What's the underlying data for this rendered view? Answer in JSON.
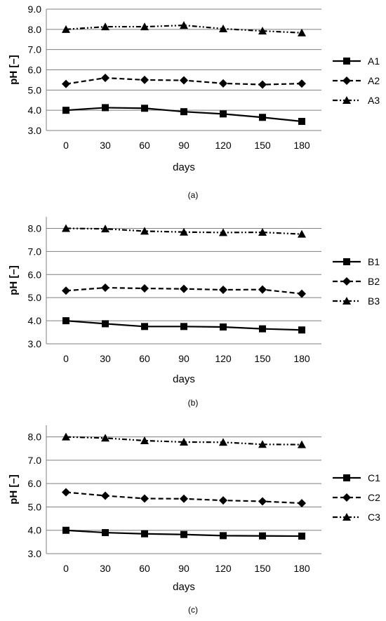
{
  "chart_data": [
    {
      "type": "line",
      "caption": "(a)",
      "xlabel": "days",
      "ylabel": "pH [–]",
      "categories": [
        "0",
        "30",
        "60",
        "90",
        "120",
        "150",
        "180"
      ],
      "ylim": [
        3.0,
        9.0
      ],
      "yticks": [
        "3.0",
        "4.0",
        "5.0",
        "6.0",
        "7.0",
        "8.0",
        "9.0"
      ],
      "grid": true,
      "legend": "right",
      "series": [
        {
          "name": "A1",
          "values": [
            4.0,
            4.13,
            4.1,
            3.93,
            3.82,
            3.65,
            3.45
          ],
          "marker": "square",
          "dash": "solid"
        },
        {
          "name": "A2",
          "values": [
            5.3,
            5.6,
            5.5,
            5.48,
            5.33,
            5.27,
            5.32
          ],
          "marker": "diamond",
          "dash": "dashed"
        },
        {
          "name": "A3",
          "values": [
            8.0,
            8.13,
            8.13,
            8.2,
            8.03,
            7.92,
            7.83
          ],
          "marker": "triangle",
          "dash": "dashdotdot"
        }
      ]
    },
    {
      "type": "line",
      "caption": "(b)",
      "xlabel": "days",
      "ylabel": "pH [–]",
      "categories": [
        "0",
        "30",
        "60",
        "90",
        "120",
        "150",
        "180"
      ],
      "ylim": [
        3.0,
        8.5
      ],
      "yticks": [
        "3.0",
        "4.0",
        "5.0",
        "6.0",
        "7.0",
        "8.0"
      ],
      "grid": true,
      "legend": "right",
      "series": [
        {
          "name": "B1",
          "values": [
            4.0,
            3.87,
            3.75,
            3.75,
            3.73,
            3.65,
            3.6
          ],
          "marker": "square",
          "dash": "solid"
        },
        {
          "name": "B2",
          "values": [
            5.3,
            5.43,
            5.4,
            5.38,
            5.34,
            5.35,
            5.17
          ],
          "marker": "diamond",
          "dash": "dashed"
        },
        {
          "name": "B3",
          "values": [
            8.0,
            7.98,
            7.88,
            7.84,
            7.82,
            7.83,
            7.75
          ],
          "marker": "triangle",
          "dash": "dashdotdot"
        }
      ]
    },
    {
      "type": "line",
      "caption": "(c)",
      "xlabel": "days",
      "ylabel": "pH [–]",
      "categories": [
        "0",
        "30",
        "60",
        "90",
        "120",
        "150",
        "180"
      ],
      "ylim": [
        3.0,
        8.5
      ],
      "yticks": [
        "3.0",
        "4.0",
        "5.0",
        "6.0",
        "7.0",
        "8.0"
      ],
      "grid": true,
      "legend": "right",
      "series": [
        {
          "name": "C1",
          "values": [
            4.0,
            3.9,
            3.85,
            3.82,
            3.77,
            3.76,
            3.75
          ],
          "marker": "square",
          "dash": "solid"
        },
        {
          "name": "C2",
          "values": [
            5.63,
            5.48,
            5.36,
            5.35,
            5.28,
            5.24,
            5.16
          ],
          "marker": "diamond",
          "dash": "dashed"
        },
        {
          "name": "C3",
          "values": [
            8.0,
            7.95,
            7.84,
            7.78,
            7.77,
            7.68,
            7.67
          ],
          "marker": "triangle",
          "dash": "dashdotdot"
        }
      ]
    }
  ]
}
